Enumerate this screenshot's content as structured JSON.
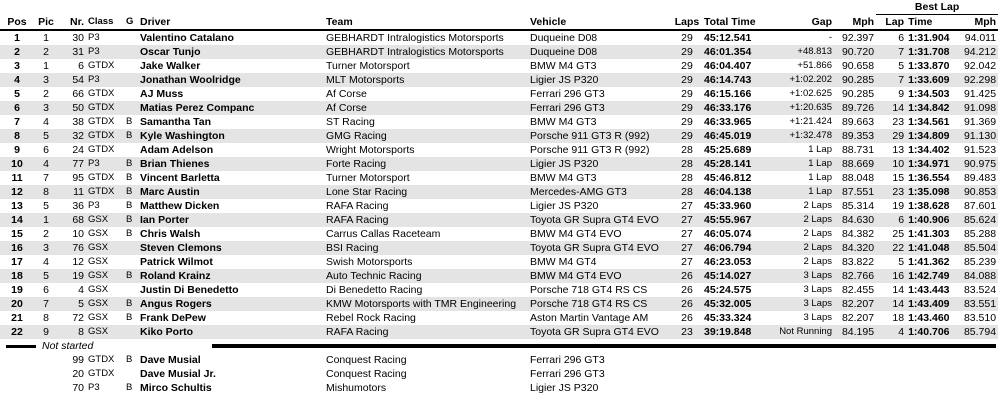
{
  "header": {
    "best_lap": "Best Lap",
    "columns": [
      "Pos",
      "Pic",
      "Nr.",
      "Class",
      "G",
      "Driver",
      "Team",
      "Vehicle",
      "Laps",
      "Total Time",
      "Gap",
      "Mph",
      "Lap",
      "Time",
      "Mph"
    ]
  },
  "rows": [
    [
      "1",
      "1",
      "30",
      "P3",
      null,
      "Valentino Catalano",
      "GEBHARDT Intralogistics Motorsports",
      "Duqueine D08",
      "29",
      "45:12.541",
      "-",
      "92.397",
      "6",
      "1:31.904",
      "94.011"
    ],
    [
      "2",
      "2",
      "31",
      "P3",
      null,
      "Oscar Tunjo",
      "GEBHARDT Intralogistics Motorsports",
      "Duqueine D08",
      "29",
      "46:01.354",
      "+48.813",
      "90.720",
      "7",
      "1:31.708",
      "94.212"
    ],
    [
      "3",
      "1",
      "6",
      "GTDX",
      null,
      "Jake Walker",
      "Turner Motorsport",
      "BMW M4 GT3",
      "29",
      "46:04.407",
      "+51.866",
      "90.658",
      "5",
      "1:33.870",
      "92.042"
    ],
    [
      "4",
      "3",
      "54",
      "P3",
      null,
      "Jonathan Woolridge",
      "MLT Motorsports",
      "Ligier JS P320",
      "29",
      "46:14.743",
      "+1:02.202",
      "90.285",
      "7",
      "1:33.609",
      "92.298"
    ],
    [
      "5",
      "2",
      "66",
      "GTDX",
      null,
      "AJ Muss",
      "Af Corse",
      "Ferrari 296 GT3",
      "29",
      "46:15.166",
      "+1:02.625",
      "90.285",
      "9",
      "1:34.503",
      "91.425"
    ],
    [
      "6",
      "3",
      "50",
      "GTDX",
      null,
      "Matias Perez Companc",
      "Af Corse",
      "Ferrari 296 GT3",
      "29",
      "46:33.176",
      "+1:20.635",
      "89.726",
      "14",
      "1:34.842",
      "91.098"
    ],
    [
      "7",
      "4",
      "38",
      "GTDX",
      "B",
      "Samantha Tan",
      "ST Racing",
      "BMW M4 GT3",
      "29",
      "46:33.965",
      "+1:21.424",
      "89.663",
      "23",
      "1:34.561",
      "91.369"
    ],
    [
      "8",
      "5",
      "32",
      "GTDX",
      "B",
      "Kyle Washington",
      "GMG Racing",
      "Porsche 911 GT3 R (992)",
      "29",
      "46:45.019",
      "+1:32.478",
      "89.353",
      "29",
      "1:34.809",
      "91.130"
    ],
    [
      "9",
      "6",
      "24",
      "GTDX",
      null,
      "Adam Adelson",
      "Wright Motorsports",
      "Porsche 911 GT3 R (992)",
      "28",
      "45:25.689",
      "1 Lap",
      "88.731",
      "13",
      "1:34.402",
      "91.523"
    ],
    [
      "10",
      "4",
      "77",
      "P3",
      "B",
      "Brian Thienes",
      "Forte Racing",
      "Ligier JS P320",
      "28",
      "45:28.141",
      "1 Lap",
      "88.669",
      "10",
      "1:34.971",
      "90.975"
    ],
    [
      "11",
      "7",
      "95",
      "GTDX",
      "B",
      "Vincent Barletta",
      "Turner Motorsport",
      "BMW M4 GT3",
      "28",
      "45:46.812",
      "1 Lap",
      "88.048",
      "15",
      "1:36.554",
      "89.483"
    ],
    [
      "12",
      "8",
      "11",
      "GTDX",
      "B",
      "Marc Austin",
      "Lone Star Racing",
      "Mercedes-AMG GT3",
      "28",
      "46:04.138",
      "1 Lap",
      "87.551",
      "23",
      "1:35.098",
      "90.853"
    ],
    [
      "13",
      "5",
      "36",
      "P3",
      "B",
      "Matthew Dicken",
      "RAFA Racing",
      "Ligier JS P320",
      "27",
      "45:33.960",
      "2 Laps",
      "85.314",
      "19",
      "1:38.628",
      "87.601"
    ],
    [
      "14",
      "1",
      "68",
      "GSX",
      "B",
      "Ian Porter",
      "RAFA Racing",
      "Toyota GR Supra GT4 EVO",
      "27",
      "45:55.967",
      "2 Laps",
      "84.630",
      "6",
      "1:40.906",
      "85.624"
    ],
    [
      "15",
      "2",
      "10",
      "GSX",
      "B",
      "Chris Walsh",
      "Carrus Callas Raceteam",
      "BMW M4 GT4 EVO",
      "27",
      "46:05.074",
      "2 Laps",
      "84.382",
      "25",
      "1:41.303",
      "85.288"
    ],
    [
      "16",
      "3",
      "76",
      "GSX",
      null,
      "Steven Clemons",
      "BSI Racing",
      "Toyota GR Supra GT4 EVO",
      "27",
      "46:06.794",
      "2 Laps",
      "84.320",
      "22",
      "1:41.048",
      "85.504"
    ],
    [
      "17",
      "4",
      "12",
      "GSX",
      null,
      "Patrick Wilmot",
      "Swish Motorsports",
      "BMW M4 GT4",
      "27",
      "46:23.053",
      "2 Laps",
      "83.822",
      "5",
      "1:41.362",
      "85.239"
    ],
    [
      "18",
      "5",
      "19",
      "GSX",
      "B",
      "Roland Krainz",
      "Auto Technic Racing",
      "BMW M4 GT4 EVO",
      "26",
      "45:14.027",
      "3 Laps",
      "82.766",
      "16",
      "1:42.749",
      "84.088"
    ],
    [
      "19",
      "6",
      "4",
      "GSX",
      null,
      "Justin Di Benedetto",
      "Di Benedetto Racing",
      "Porsche 718 GT4 RS CS",
      "26",
      "45:24.575",
      "3 Laps",
      "82.455",
      "14",
      "1:43.443",
      "83.524"
    ],
    [
      "20",
      "7",
      "5",
      "GSX",
      "B",
      "Angus Rogers",
      "KMW Motorsports with TMR Engineering",
      "Porsche 718 GT4 RS CS",
      "26",
      "45:32.005",
      "3 Laps",
      "82.207",
      "14",
      "1:43.409",
      "83.551"
    ],
    [
      "21",
      "8",
      "72",
      "GSX",
      "B",
      "Frank DePew",
      "Rebel Rock Racing",
      "Aston Martin Vantage AM",
      "26",
      "45:33.324",
      "3 Laps",
      "82.207",
      "18",
      "1:43.460",
      "83.510"
    ],
    [
      "22",
      "9",
      "8",
      "GSX",
      null,
      "Kiko Porto",
      "RAFA Racing",
      "Toyota GR Supra GT4 EVO",
      "23",
      "39:19.848",
      "Not Running",
      "84.195",
      "4",
      "1:40.706",
      "85.794"
    ]
  ],
  "not_started": {
    "label": "Not started",
    "rows": [
      [
        "99",
        "GTDX",
        "B",
        "Dave Musial",
        "Conquest Racing",
        "Ferrari 296 GT3"
      ],
      [
        "20",
        "GTDX",
        null,
        "Dave Musial Jr.",
        "Conquest Racing",
        "Ferrari 296 GT3"
      ],
      [
        "70",
        "P3",
        "B",
        "Mirco Schultis",
        "Mishumotors",
        "Ligier JS P320"
      ]
    ]
  }
}
